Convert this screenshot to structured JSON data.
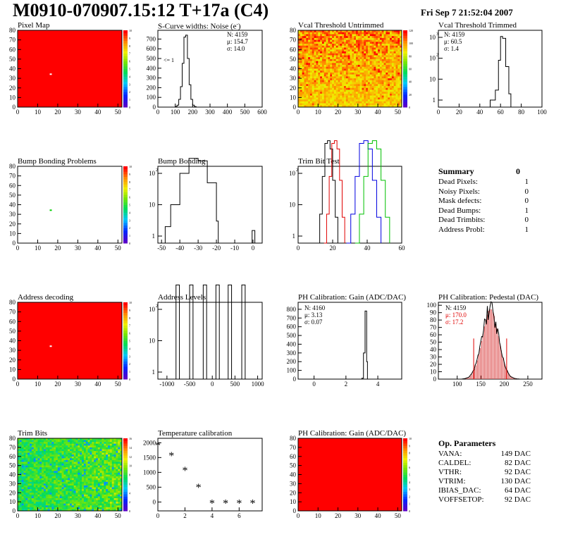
{
  "title": "M0910-070907.15:12 T+17a (C4)",
  "date": "Fri Sep  7 21:52:04 2007",
  "panels": [
    {
      "title": "Pixel Map",
      "kind": "map",
      "map": "uniform-red",
      "spot": [
        16,
        35
      ],
      "zrange": [
        0,
        10
      ],
      "xticks": [
        0,
        10,
        20,
        30,
        40,
        50
      ],
      "yticks": [
        0,
        10,
        20,
        30,
        40,
        50,
        60,
        70,
        80
      ]
    },
    {
      "title": "S-Curve widths: Noise (e-)",
      "kind": "hist",
      "xticks": [
        0,
        100,
        200,
        300,
        400,
        500,
        600
      ],
      "yticks": [
        0,
        100,
        200,
        300,
        400,
        500,
        600,
        700
      ],
      "xrange": [
        0,
        600
      ],
      "yrange": [
        0,
        790
      ],
      "stats": [
        "N: 4159",
        "μ: 154.7",
        "σ: 14.0"
      ],
      "annotation": "<= 1"
    },
    {
      "title": "Vcal Threshold Untrimmed",
      "kind": "map",
      "map": "noisy-hot",
      "zticks": [
        0,
        20,
        40,
        60,
        80,
        100,
        120
      ],
      "xticks": [
        0,
        10,
        20,
        30,
        40,
        50
      ],
      "yticks": [
        0,
        10,
        20,
        30,
        40,
        50,
        60,
        70,
        80
      ]
    },
    {
      "title": "Vcal Threshold Trimmed",
      "kind": "hist",
      "log": true,
      "xticks": [
        0,
        20,
        40,
        60,
        80,
        100
      ],
      "stats": [
        "N: 4159",
        "μ: 60.5",
        "σ:  1.4"
      ]
    },
    {
      "title": "Bump Bonding Problems",
      "kind": "map",
      "map": "empty",
      "spot": [
        16,
        35
      ],
      "xticks": [
        0,
        10,
        20,
        30,
        40,
        50
      ],
      "yticks": [
        0,
        10,
        20,
        30,
        40,
        50,
        60,
        70,
        80
      ]
    },
    {
      "title": "Bump Bonding",
      "kind": "hist",
      "log": true,
      "xticks": [
        -50,
        -40,
        -30,
        -20,
        -10,
        0
      ]
    },
    {
      "title": "Trim Bit Test",
      "kind": "hist",
      "log": true,
      "xticks": [
        0,
        20,
        40,
        60
      ]
    },
    {
      "title": "Address decoding",
      "kind": "map",
      "map": "uniform-red",
      "spot": [
        16,
        35
      ],
      "xticks": [
        0,
        10,
        20,
        30,
        40,
        50
      ],
      "yticks": [
        0,
        10,
        20,
        30,
        40,
        50,
        60,
        70,
        80
      ]
    },
    {
      "title": "Address Levels",
      "kind": "hist",
      "log": true,
      "xticks": [
        -1000,
        -500,
        0,
        500,
        1000
      ]
    },
    {
      "title": "PH Calibration: Gain (ADC/DAC)",
      "kind": "hist",
      "xticks": [
        0,
        2,
        4
      ],
      "yticks": [
        0,
        100,
        200,
        300,
        400,
        500,
        600,
        700,
        800
      ],
      "stats": [
        "N: 4160",
        "μ: 3.13",
        "σ: 0.07"
      ]
    },
    {
      "title": "PH Calibration: Pedestal (DAC)",
      "kind": "hist",
      "xticks": [
        100,
        150,
        200,
        250
      ],
      "yticks": [
        0,
        10,
        20,
        30,
        40,
        50,
        60,
        70,
        80,
        90,
        100
      ],
      "stats": [
        "N: 4159",
        "μ: 170.0",
        "σ: 17.2"
      ]
    },
    {
      "title": "Trim Bits",
      "kind": "map",
      "map": "noisy-green",
      "zticks": [
        0,
        2,
        4,
        6,
        8,
        10,
        12,
        14,
        16
      ],
      "xticks": [
        0,
        10,
        20,
        30,
        40,
        50
      ],
      "yticks": [
        0,
        10,
        20,
        30,
        40,
        50,
        60,
        70,
        80
      ]
    },
    {
      "title": "Temperature calibration",
      "kind": "scatter",
      "xticks": [
        0,
        2,
        4,
        6
      ],
      "yticks": [
        0,
        500,
        1000,
        1500,
        2000
      ]
    },
    {
      "title": "PH Calibration: Gain (ADC/DAC)",
      "kind": "map",
      "map": "uniform-red",
      "xticks": [
        0,
        10,
        20,
        30,
        40,
        50
      ],
      "yticks": [
        0,
        10,
        20,
        30,
        40,
        50,
        60,
        70,
        80
      ]
    }
  ],
  "summary": {
    "heading": "Summary",
    "heading_value": "0",
    "rows": [
      {
        "label": "Dead Pixels:",
        "value": "1"
      },
      {
        "label": "Noisy Pixels:",
        "value": "0"
      },
      {
        "label": "Mask defects:",
        "value": "0"
      },
      {
        "label": "Dead Bumps:",
        "value": "1"
      },
      {
        "label": "Dead Trimbits:",
        "value": "0"
      },
      {
        "label": "Address Probl:",
        "value": "1"
      }
    ]
  },
  "op_params": {
    "heading": "Op. Parameters",
    "rows": [
      {
        "label": "VANA:",
        "value": "149 DAC"
      },
      {
        "label": "CALDEL:",
        "value": "82 DAC"
      },
      {
        "label": "VTHR:",
        "value": "92 DAC"
      },
      {
        "label": "VTRIM:",
        "value": "130 DAC"
      },
      {
        "label": "IBIAS_DAC:",
        "value": "64 DAC"
      },
      {
        "label": "VOFFSETOP:",
        "value": "92 DAC"
      }
    ]
  },
  "chart_data": [
    {
      "type": "heatmap",
      "title": "Pixel Map",
      "xlim": [
        0,
        52
      ],
      "ylim": [
        0,
        80
      ],
      "zlim": [
        0,
        10
      ],
      "note": "all pixels red except one near (16,35)"
    },
    {
      "type": "bar",
      "title": "S-Curve widths: Noise (e-)",
      "x": [
        100,
        110,
        120,
        130,
        140,
        150,
        160,
        170,
        180,
        190,
        200,
        210
      ],
      "values": [
        5,
        20,
        80,
        210,
        450,
        720,
        740,
        500,
        230,
        80,
        20,
        5
      ],
      "stats": {
        "N": 4159,
        "mean": 154.7,
        "sigma": 14.0
      }
    },
    {
      "type": "heatmap",
      "title": "Vcal Threshold Untrimmed",
      "xlim": [
        0,
        52
      ],
      "ylim": [
        0,
        80
      ],
      "zlim": [
        0,
        130
      ]
    },
    {
      "type": "bar",
      "title": "Vcal Threshold Trimmed",
      "log": true,
      "x": [
        50,
        55,
        58,
        60,
        62,
        65,
        68
      ],
      "values": [
        1,
        3,
        80,
        1100,
        900,
        40,
        2
      ],
      "stats": {
        "N": 4159,
        "mean": 60.5,
        "sigma": 1.4
      }
    },
    {
      "type": "heatmap",
      "title": "Bump Bonding Problems",
      "xlim": [
        0,
        52
      ],
      "ylim": [
        0,
        80
      ],
      "note": "single pixel near (16,35)"
    },
    {
      "type": "bar",
      "title": "Bump Bonding",
      "log": true,
      "x": [
        -48,
        -45,
        -40,
        -35,
        -30,
        -25,
        -20,
        0
      ],
      "values": [
        2,
        10,
        100,
        300,
        250,
        50,
        3,
        1
      ]
    },
    {
      "type": "line",
      "title": "Trim Bit Test",
      "log": true,
      "series": [
        {
          "values": [
            1,
            10,
            1000,
            10
          ]
        },
        {
          "values": [
            1,
            10,
            1000,
            10
          ]
        },
        {
          "values": [
            1,
            10,
            1000,
            10
          ]
        },
        {
          "values": [
            1,
            10,
            1000,
            10
          ]
        }
      ]
    },
    {
      "type": "heatmap",
      "title": "Address decoding",
      "xlim": [
        0,
        52
      ],
      "ylim": [
        0,
        80
      ],
      "note": "all pixels red except one near (16,35)"
    },
    {
      "type": "bar",
      "title": "Address Levels",
      "log": true,
      "x": [
        -750,
        -450,
        -150,
        130,
        400,
        700
      ],
      "values": [
        600,
        600,
        600,
        600,
        600,
        600
      ]
    },
    {
      "type": "bar",
      "title": "PH Calibration: Gain (ADC/DAC)",
      "x": [
        3.0,
        3.1,
        3.2,
        3.3
      ],
      "values": [
        10,
        300,
        780,
        200
      ],
      "stats": {
        "N": 4160,
        "mean": 3.13,
        "sigma": 0.07
      }
    },
    {
      "type": "bar",
      "title": "PH Calibration: Pedestal (DAC)",
      "x": [
        120,
        140,
        160,
        170,
        180,
        200,
        220
      ],
      "values": [
        2,
        20,
        75,
        95,
        80,
        30,
        2
      ],
      "stats": {
        "N": 4159,
        "mean": 170.0,
        "sigma": 17.2
      }
    },
    {
      "type": "heatmap",
      "title": "Trim Bits",
      "xlim": [
        0,
        52
      ],
      "ylim": [
        0,
        80
      ],
      "zlim": [
        0,
        16
      ]
    },
    {
      "type": "scatter",
      "title": "Temperature calibration",
      "x": [
        0,
        1,
        2,
        3,
        4,
        5,
        6,
        7
      ],
      "y": [
        1900,
        1550,
        1050,
        480,
        -50,
        -50,
        -50,
        -50
      ]
    },
    {
      "type": "heatmap",
      "title": "PH Calibration: Gain (ADC/DAC)",
      "xlim": [
        0,
        52
      ],
      "ylim": [
        0,
        80
      ]
    }
  ]
}
